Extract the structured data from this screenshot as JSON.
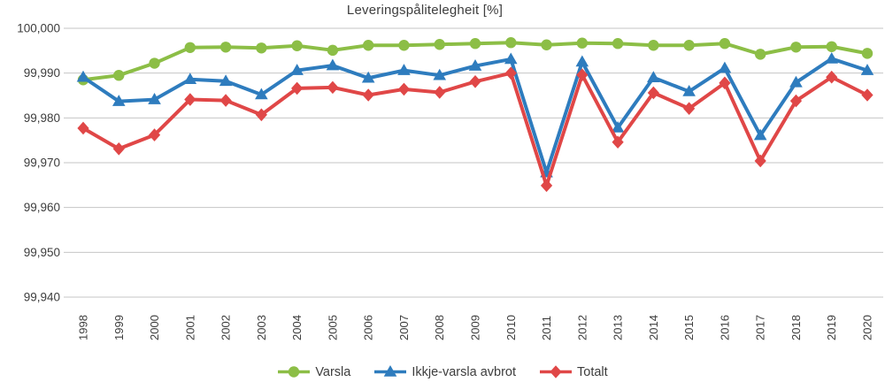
{
  "chart_data": {
    "type": "line",
    "title": "Leveringspålitelegheit [%]",
    "xlabel": "",
    "ylabel": "",
    "x": [
      1998,
      1999,
      2000,
      2001,
      2002,
      2003,
      2004,
      2005,
      2006,
      2007,
      2008,
      2009,
      2010,
      2011,
      2012,
      2013,
      2014,
      2015,
      2016,
      2017,
      2018,
      2019,
      2020
    ],
    "x_tick_labels": [
      "1998",
      "1999",
      "2000",
      "2001",
      "2002",
      "2003",
      "2004",
      "2005",
      "2006",
      "2007",
      "2008",
      "2009",
      "2010",
      "2011",
      "2012",
      "2013",
      "2014",
      "2015",
      "2016",
      "2017",
      "2018",
      "2019",
      "2020"
    ],
    "ylim": [
      99.94,
      100.0
    ],
    "y_tick_values": [
      100.0,
      99.99,
      99.98,
      99.97,
      99.96,
      99.95,
      99.94
    ],
    "y_tick_labels": [
      "100,000",
      "99,990",
      "99,980",
      "99,970",
      "99,960",
      "99,950",
      "99,940"
    ],
    "grid": "horizontal",
    "gridline_color": "#c6c6c6",
    "text_color": "#3d3d3d",
    "legend_position": "bottom",
    "series": [
      {
        "name": "Varsla",
        "color": "#8cbe46",
        "marker": "circle",
        "values": [
          99.9885,
          99.9895,
          99.9922,
          99.9957,
          99.9958,
          99.9956,
          99.9961,
          99.9951,
          99.9962,
          99.9962,
          99.9964,
          99.9966,
          99.9968,
          99.9963,
          99.9967,
          99.9966,
          99.9962,
          99.9962,
          99.9966,
          99.9942,
          99.9958,
          99.9959,
          99.9944
        ]
      },
      {
        "name": "Ikkje-varsla avbrot",
        "color": "#2e7cbe",
        "marker": "triangle",
        "values": [
          99.9891,
          99.9837,
          99.9841,
          99.9886,
          99.9882,
          99.9852,
          99.9906,
          99.9917,
          99.9889,
          99.9906,
          99.9895,
          99.9916,
          99.9931,
          99.9678,
          99.9925,
          99.9778,
          99.989,
          99.9859,
          99.9911,
          99.9761,
          99.9879,
          99.9932,
          99.9906
        ]
      },
      {
        "name": "Totalt",
        "color": "#e04747",
        "marker": "diamond",
        "values": [
          99.9777,
          99.9731,
          99.9762,
          99.9841,
          99.9839,
          99.9807,
          99.9866,
          99.9868,
          99.9851,
          99.9864,
          99.9857,
          99.9881,
          99.99,
          99.9649,
          99.9896,
          99.9746,
          99.9856,
          99.9821,
          99.9878,
          99.9704,
          99.9838,
          99.9891,
          99.9851
        ]
      }
    ]
  }
}
